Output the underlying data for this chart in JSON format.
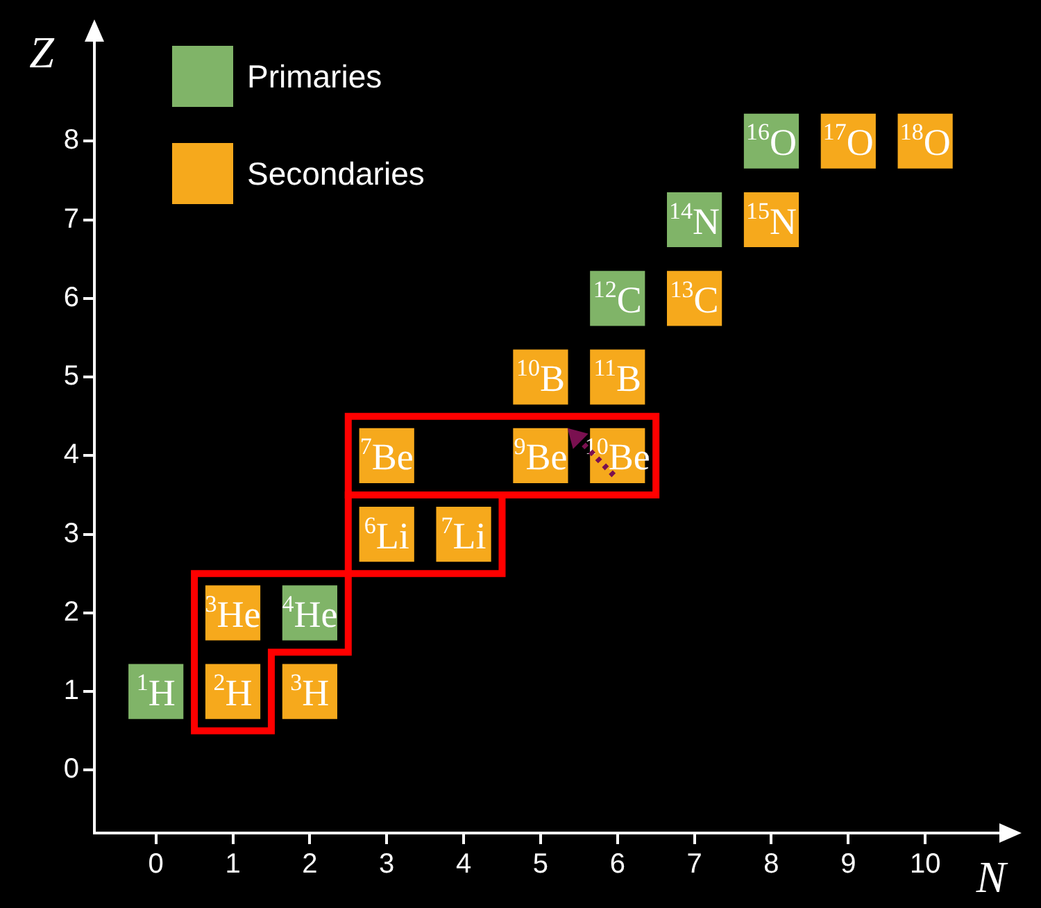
{
  "chart_data": {
    "type": "scatter",
    "xlabel": "N",
    "ylabel": "Z",
    "xlim": [
      -0.8,
      11
    ],
    "ylim": [
      -0.8,
      9.3
    ],
    "xticks": [
      0,
      1,
      2,
      3,
      4,
      5,
      6,
      7,
      8,
      9,
      10
    ],
    "yticks": [
      0,
      1,
      2,
      3,
      4,
      5,
      6,
      7,
      8
    ],
    "grid": false,
    "legend": "top left",
    "marker": "square",
    "series": [
      {
        "name": "Primaries",
        "color": "#80b468",
        "x": [
          0,
          2,
          6,
          7,
          8
        ],
        "values": [
          1,
          2,
          6,
          7,
          8
        ]
      },
      {
        "name": "Secondaries",
        "color": "#f6a91c",
        "x": [
          1,
          2,
          1,
          3,
          4,
          3,
          5,
          6,
          5,
          6,
          7,
          8,
          9,
          10
        ],
        "values": [
          1,
          1,
          2,
          3,
          3,
          4,
          4,
          4,
          5,
          5,
          6,
          7,
          8,
          8
        ]
      }
    ],
    "annotations": [
      {
        "text": "$^{1}$H",
        "x": 0,
        "y": 1
      },
      {
        "text": "$^{4}$He",
        "x": 2,
        "y": 2
      },
      {
        "text": "$^{12}$C",
        "x": 6,
        "y": 6
      },
      {
        "text": "$^{14}$N",
        "x": 7,
        "y": 7
      },
      {
        "text": "$^{16}$O",
        "x": 8,
        "y": 8
      },
      {
        "text": "$^{2}$H",
        "x": 1,
        "y": 1
      },
      {
        "text": "$^{3}$H",
        "x": 2,
        "y": 1
      },
      {
        "text": "$^{3}$He",
        "x": 1,
        "y": 2
      },
      {
        "text": "$^{6}$Li",
        "x": 3,
        "y": 3
      },
      {
        "text": "$^{7}$Li",
        "x": 4,
        "y": 3
      },
      {
        "text": "$^{7}$Be",
        "x": 3,
        "y": 4
      },
      {
        "text": "$^{9}$Be",
        "x": 5,
        "y": 4
      },
      {
        "text": "$^{10}$Be",
        "x": 6,
        "y": 4
      },
      {
        "text": "$^{10}$B",
        "x": 5,
        "y": 5
      },
      {
        "text": "$^{11}$B",
        "x": 6,
        "y": 5
      },
      {
        "text": "$^{13}$C",
        "x": 7,
        "y": 6
      },
      {
        "text": "$^{15}$N",
        "x": 8,
        "y": 7
      },
      {
        "text": "$^{17}$O",
        "x": 9,
        "y": 8
      },
      {
        "text": "$^{18}$O",
        "x": 10,
        "y": 8
      }
    ]
  }
}
